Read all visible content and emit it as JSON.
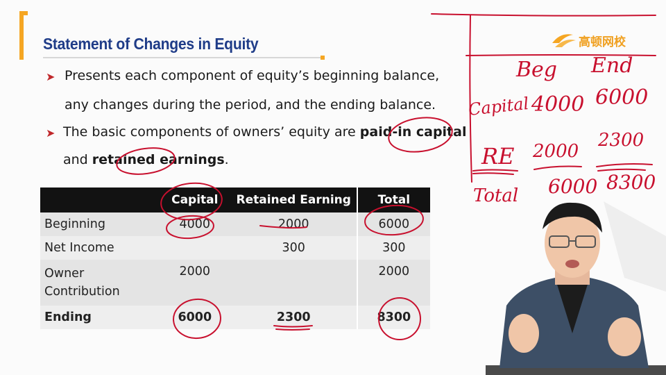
{
  "slide": {
    "title": "Statement of Changes in Equity",
    "bullets": [
      {
        "line1": "Presents each component of equity’s beginning balance,",
        "line2": "any changes during the period, and the ending balance."
      },
      {
        "line1_pre": "The basic components of owners’ equity are ",
        "line1_bold": "paid-in capital",
        "line2_pre": "and ",
        "line2_bold": "retained earnings",
        "line2_post": "."
      }
    ]
  },
  "table": {
    "headers": [
      "",
      "Capital",
      "Retained Earning",
      "Total"
    ],
    "rows": [
      {
        "label": "Beginning",
        "capital": "4000",
        "retained": "2000",
        "total": "6000"
      },
      {
        "label": "Net Income",
        "capital": "",
        "retained": "300",
        "total": "300"
      },
      {
        "label_line1": "Owner",
        "label_line2": "Contribution",
        "capital": "2000",
        "retained": "",
        "total": "2000"
      },
      {
        "label": "Ending",
        "capital": "6000",
        "retained": "2300",
        "total": "8300"
      }
    ]
  },
  "logo": {
    "text": "高顿网校"
  },
  "handwriting": {
    "header_beg": "Beg",
    "header_end": "End",
    "row1_label": "Capital",
    "row1_beg": "4000",
    "row1_end": "6000",
    "row2_label": "RE",
    "row2_beg": "2000",
    "row2_end": "2300",
    "row3_label": "Total",
    "row3_beg": "6000",
    "row3_end": "8300"
  },
  "colors": {
    "title": "#1f3c88",
    "accent": "#f5a623",
    "bullet": "#c0282b",
    "ink": "#c8102e",
    "table_header_bg": "#121212"
  }
}
